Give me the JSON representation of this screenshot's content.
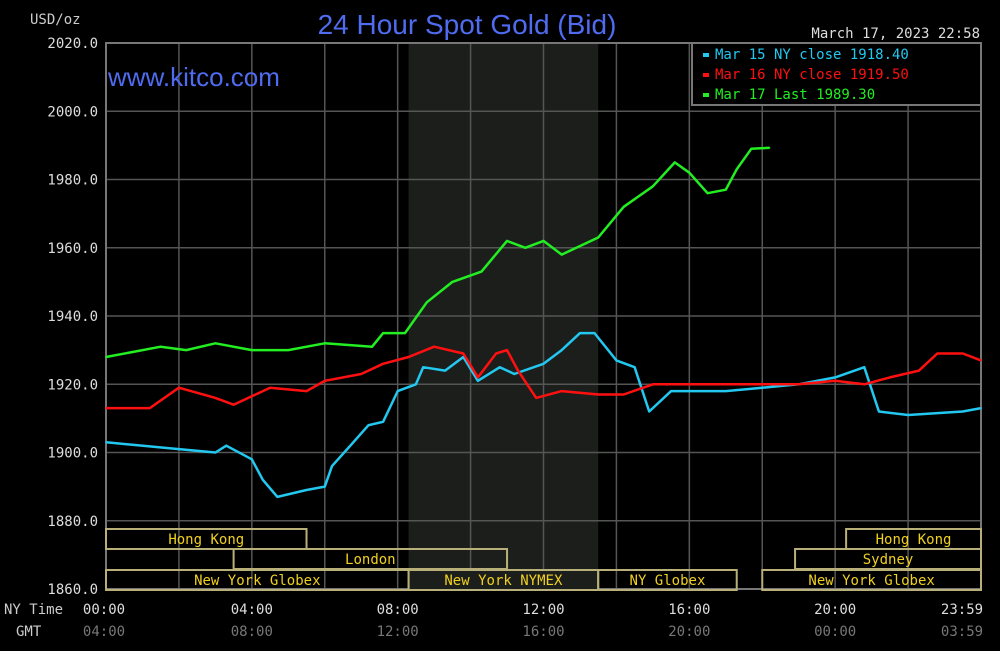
{
  "chart_data": {
    "type": "line",
    "title": "24 Hour Spot Gold (Bid)",
    "watermark": "www.kitco.com",
    "ylabel": "USD/oz",
    "timestamp": "March 17, 2023 22:58",
    "ylim": [
      1860,
      2020
    ],
    "xlim": [
      0,
      24
    ],
    "yticks": [
      "2020.0",
      "2000.0",
      "1980.0",
      "1960.0",
      "1940.0",
      "1920.0",
      "1900.0",
      "1880.0",
      "1860.0"
    ],
    "ytick_values": [
      2020,
      2000,
      1980,
      1960,
      1940,
      1920,
      1900,
      1880,
      1860
    ],
    "x_row_labels": {
      "ny": "NY Time",
      "gmt": "GMT"
    },
    "xticks_ny": [
      "00:00",
      "04:00",
      "08:00",
      "12:00",
      "16:00",
      "20:00",
      "23:59"
    ],
    "xticks_gmt": [
      "04:00",
      "08:00",
      "12:00",
      "16:00",
      "20:00",
      "00:00",
      "03:59"
    ],
    "xtick_values": [
      0,
      4,
      8,
      12,
      16,
      20,
      23.98
    ],
    "grid": true,
    "shaded_hours": [
      8.3,
      13.5
    ],
    "series": [
      {
        "name": "Mar 15 NY close 1918.40",
        "color": "#22c8f0",
        "x": [
          0,
          2,
          3,
          3.3,
          4,
          4.3,
          4.7,
          5.5,
          6,
          6.2,
          6.7,
          7.2,
          7.6,
          8,
          8.5,
          8.7,
          9.3,
          9.8,
          10.2,
          10.8,
          11.2,
          12,
          12.5,
          13,
          13.4,
          14,
          14.5,
          14.9,
          15.5,
          17,
          18,
          19,
          20,
          20.8,
          21.2,
          22,
          23.5,
          24
        ],
        "y": [
          1903,
          1901,
          1900,
          1902,
          1898,
          1892,
          1887,
          1889,
          1890,
          1896,
          1902,
          1908,
          1909,
          1918,
          1920,
          1925,
          1924,
          1928,
          1921,
          1925,
          1923,
          1926,
          1930,
          1935,
          1935,
          1927,
          1925,
          1912,
          1918,
          1918,
          1919,
          1920,
          1922,
          1925,
          1912,
          1911,
          1912,
          1913
        ]
      },
      {
        "name": "Mar 16 NY close 1919.50",
        "color": "#ff1010",
        "x": [
          0,
          1.2,
          2,
          3,
          3.5,
          4.5,
          5.5,
          6,
          7,
          7.6,
          8.3,
          9,
          9.8,
          10.2,
          10.7,
          11,
          11.3,
          11.8,
          12.5,
          13.5,
          14.2,
          15,
          17,
          19,
          20,
          20.8,
          21.5,
          22.3,
          22.8,
          23.5,
          24
        ],
        "y": [
          1913,
          1913,
          1919,
          1916,
          1914,
          1919,
          1918,
          1921,
          1923,
          1926,
          1928,
          1931,
          1929,
          1922,
          1929,
          1930,
          1924,
          1916,
          1918,
          1917,
          1917,
          1920,
          1920,
          1920,
          1921,
          1920,
          1922,
          1924,
          1929,
          1929,
          1927
        ]
      },
      {
        "name": "Mar 17 Last 1989.30",
        "color": "#22ee22",
        "x": [
          0,
          1.5,
          2.2,
          3,
          4,
          5,
          6,
          7.3,
          7.6,
          8.2,
          8.8,
          9.5,
          10.3,
          11,
          11.5,
          12,
          12.5,
          13.5,
          14.2,
          15,
          15.6,
          16,
          16.5,
          17,
          17.3,
          17.7,
          18.2
        ],
        "y": [
          1928,
          1931,
          1930,
          1932,
          1930,
          1930,
          1932,
          1931,
          1935,
          1935,
          1944,
          1950,
          1953,
          1962,
          1960,
          1962,
          1958,
          1963,
          1972,
          1978,
          1985,
          1982,
          1976,
          1977,
          1983,
          1989,
          1989.3
        ]
      }
    ],
    "sessions": [
      {
        "label": "Hong Kong",
        "row": 0,
        "start": 0,
        "end": 5.5
      },
      {
        "label": "Hong Kong",
        "row": 0,
        "start": 20.3,
        "end": 24
      },
      {
        "label": "London",
        "row": 1,
        "start": 3.5,
        "end": 11
      },
      {
        "label": "Sydney",
        "row": 1,
        "start": 18.9,
        "end": 24
      },
      {
        "label": "New York Globex",
        "row": 2,
        "start": 0,
        "end": 8.3
      },
      {
        "label": "New York NYMEX",
        "row": 2,
        "start": 8.3,
        "end": 13.5
      },
      {
        "label": "NY Globex",
        "row": 2,
        "start": 13.5,
        "end": 17.3
      },
      {
        "label": "New York Globex",
        "row": 2,
        "start": 18,
        "end": 24
      }
    ]
  }
}
